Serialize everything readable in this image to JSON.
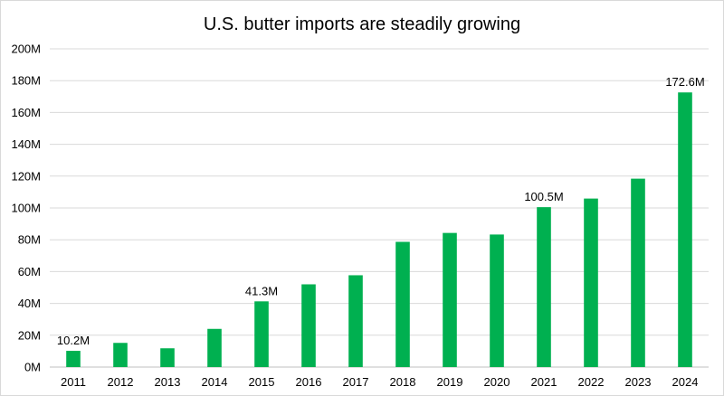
{
  "chart_data": {
    "type": "bar",
    "title": "U.S. butter imports are steadily growing",
    "xlabel": "",
    "ylabel": "",
    "categories": [
      "2011",
      "2012",
      "2013",
      "2014",
      "2015",
      "2016",
      "2017",
      "2018",
      "2019",
      "2020",
      "2021",
      "2022",
      "2023",
      "2024"
    ],
    "values": [
      10.2,
      15.2,
      11.8,
      24.0,
      41.3,
      52.0,
      57.7,
      78.7,
      84.3,
      83.3,
      100.5,
      105.9,
      118.4,
      172.6
    ],
    "unit_suffix": "M",
    "ylim": [
      0,
      200
    ],
    "yticks": [
      0,
      20,
      40,
      60,
      80,
      100,
      120,
      140,
      160,
      180,
      200
    ],
    "ytick_labels": [
      "0M",
      "20M",
      "40M",
      "60M",
      "80M",
      "100M",
      "120M",
      "140M",
      "160M",
      "180M",
      "200M"
    ],
    "data_labels": [
      {
        "category": "2011",
        "text": "10.2M"
      },
      {
        "category": "2015",
        "text": "41.3M"
      },
      {
        "category": "2021",
        "text": "100.5M"
      },
      {
        "category": "2024",
        "text": "172.6M"
      }
    ],
    "bar_color": "#00b050",
    "grid": true,
    "legend": "none"
  }
}
